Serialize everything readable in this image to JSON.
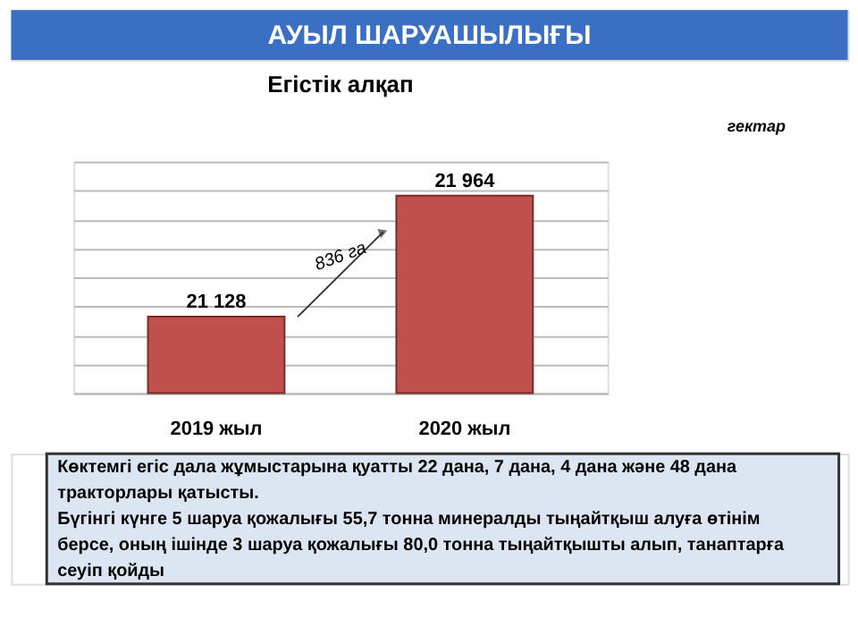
{
  "chart_data": {
    "type": "bar",
    "title": "АУЫЛ ШАРУАШЫЛЫҒЫ",
    "subtitle": "Егістік алқап",
    "categories": [
      "2019 жыл",
      "2020 жыл"
    ],
    "values": [
      21128,
      21964
    ],
    "value_labels": [
      "21 128",
      "21 964"
    ],
    "color": "#c0504d",
    "ylim": [
      20600,
      22200
    ],
    "grid": "y",
    "tick_labels": "x",
    "annotations": [
      "836 га",
      "гектар",
      "Көктемгі егіс дала жұмыстарына қуатты 22 дана, 7 дана, 4 дана және 48 дана тракторлары қатысты.",
      "Бүгінгі күнге 5 шаруа қожалығы 55,7 тонна минералды тыңайтқыш алуға өтінім берсе, оның ішінде 3 шаруа қожалығы 80,0 тонна тыңайтқышты алып, танаптарға сеуіп қойды"
    ]
  }
}
